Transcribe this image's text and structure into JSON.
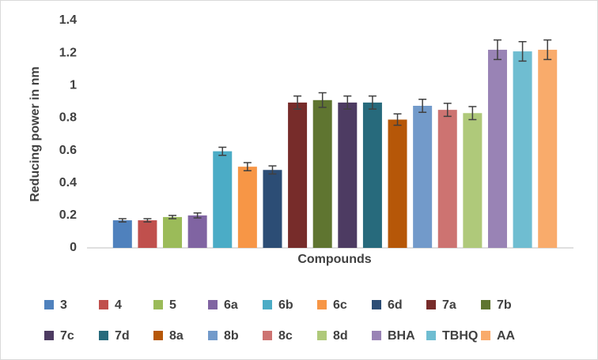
{
  "chart_data": {
    "type": "bar",
    "y_label": "Reducing power in nm",
    "x_label": "Compounds",
    "categories": [
      "3",
      "4",
      "5",
      "6a",
      "6b",
      "6c",
      "6d",
      "7a",
      "7b",
      "7c",
      "7d",
      "8a",
      "8b",
      "8c",
      "8d",
      "BHA",
      "TBHQ",
      "AA"
    ],
    "values": [
      0.17,
      0.17,
      0.19,
      0.2,
      0.595,
      0.5,
      0.48,
      0.895,
      0.91,
      0.895,
      0.895,
      0.79,
      0.875,
      0.85,
      0.83,
      1.22,
      1.21,
      1.22
    ],
    "errors": [
      0.01,
      0.01,
      0.01,
      0.015,
      0.025,
      0.025,
      0.025,
      0.04,
      0.045,
      0.04,
      0.04,
      0.035,
      0.04,
      0.04,
      0.04,
      0.06,
      0.06,
      0.06
    ],
    "colors": [
      "#4f81bd",
      "#c0504d",
      "#9bbb59",
      "#8064a2",
      "#4bacc6",
      "#f79646",
      "#2c4d75",
      "#772c2a",
      "#5f7530",
      "#4d3b62",
      "#276a7c",
      "#b65708",
      "#729aca",
      "#cd7371",
      "#afc97a",
      "#9983b5",
      "#6fbdd1",
      "#f9ab6b"
    ],
    "ylim": [
      0,
      1.4
    ],
    "yticks": [
      0,
      0.2,
      0.4,
      0.6,
      0.8,
      1,
      1.2,
      1.4
    ],
    "grid": false,
    "legend": "bottom"
  }
}
